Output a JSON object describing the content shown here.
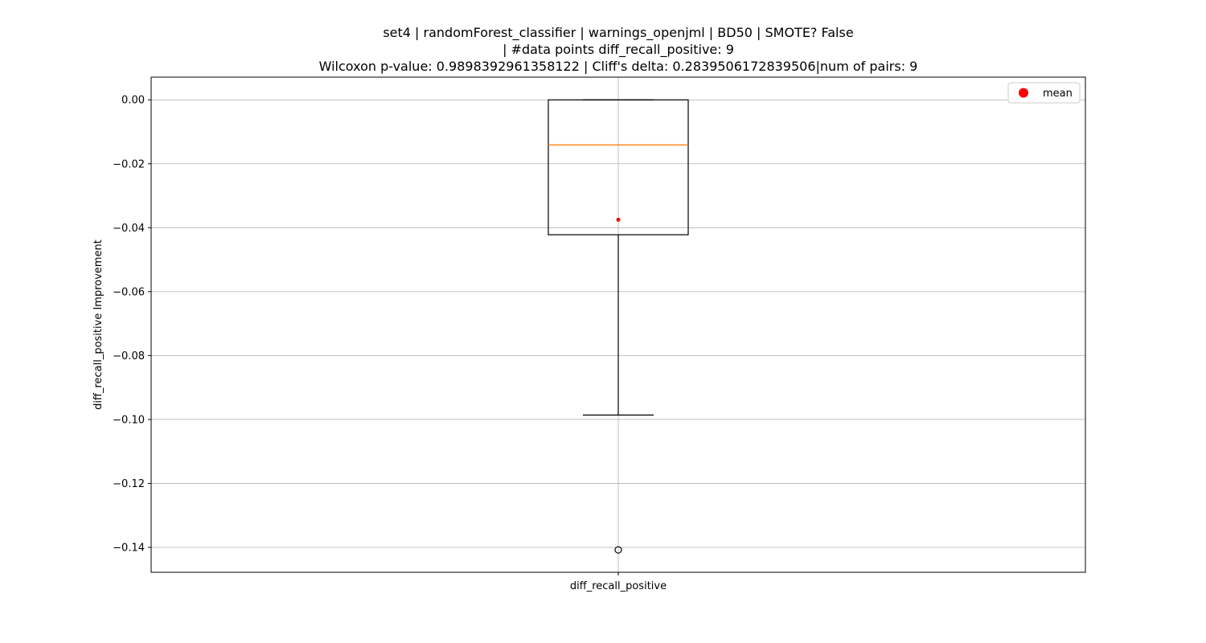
{
  "chart_data": {
    "type": "box",
    "title_lines": [
      "set4 | randomForest_classifier | warnings_openjml | BD50 | SMOTE? False",
      "| #data points diff_recall_positive: 9",
      "Wilcoxon p-value: 0.9898392961358122 | Cliff's delta: 0.2839506172839506|num of pairs: 9"
    ],
    "xlabel": "",
    "ylabel": "diff_recall_positive Improvement",
    "ylim": [
      -0.1478,
      0.0071
    ],
    "yticks": [
      0.0,
      -0.02,
      -0.04,
      -0.06,
      -0.08,
      -0.1,
      -0.12,
      -0.14
    ],
    "ytick_labels": [
      "0.00",
      "−0.02",
      "−0.04",
      "−0.06",
      "−0.08",
      "−0.10",
      "−0.12",
      "−0.14"
    ],
    "categories": [
      "diff_recall_positive"
    ],
    "grid": true,
    "legend": {
      "placement": "top-right",
      "entries": [
        {
          "label": "mean",
          "color": "#ff0000"
        }
      ]
    },
    "boxes": [
      {
        "category": "diff_recall_positive",
        "q1": -0.0422,
        "median": -0.0141,
        "q3": 0.0,
        "whisker_low": -0.0986,
        "whisker_high": 0.0,
        "outliers": [
          -0.1408
        ],
        "mean": -0.0375
      }
    ],
    "colors": {
      "box": "#000000",
      "median": "#ff7f0e",
      "mean": "#ff0000",
      "grid": "#b0b0b0"
    }
  }
}
